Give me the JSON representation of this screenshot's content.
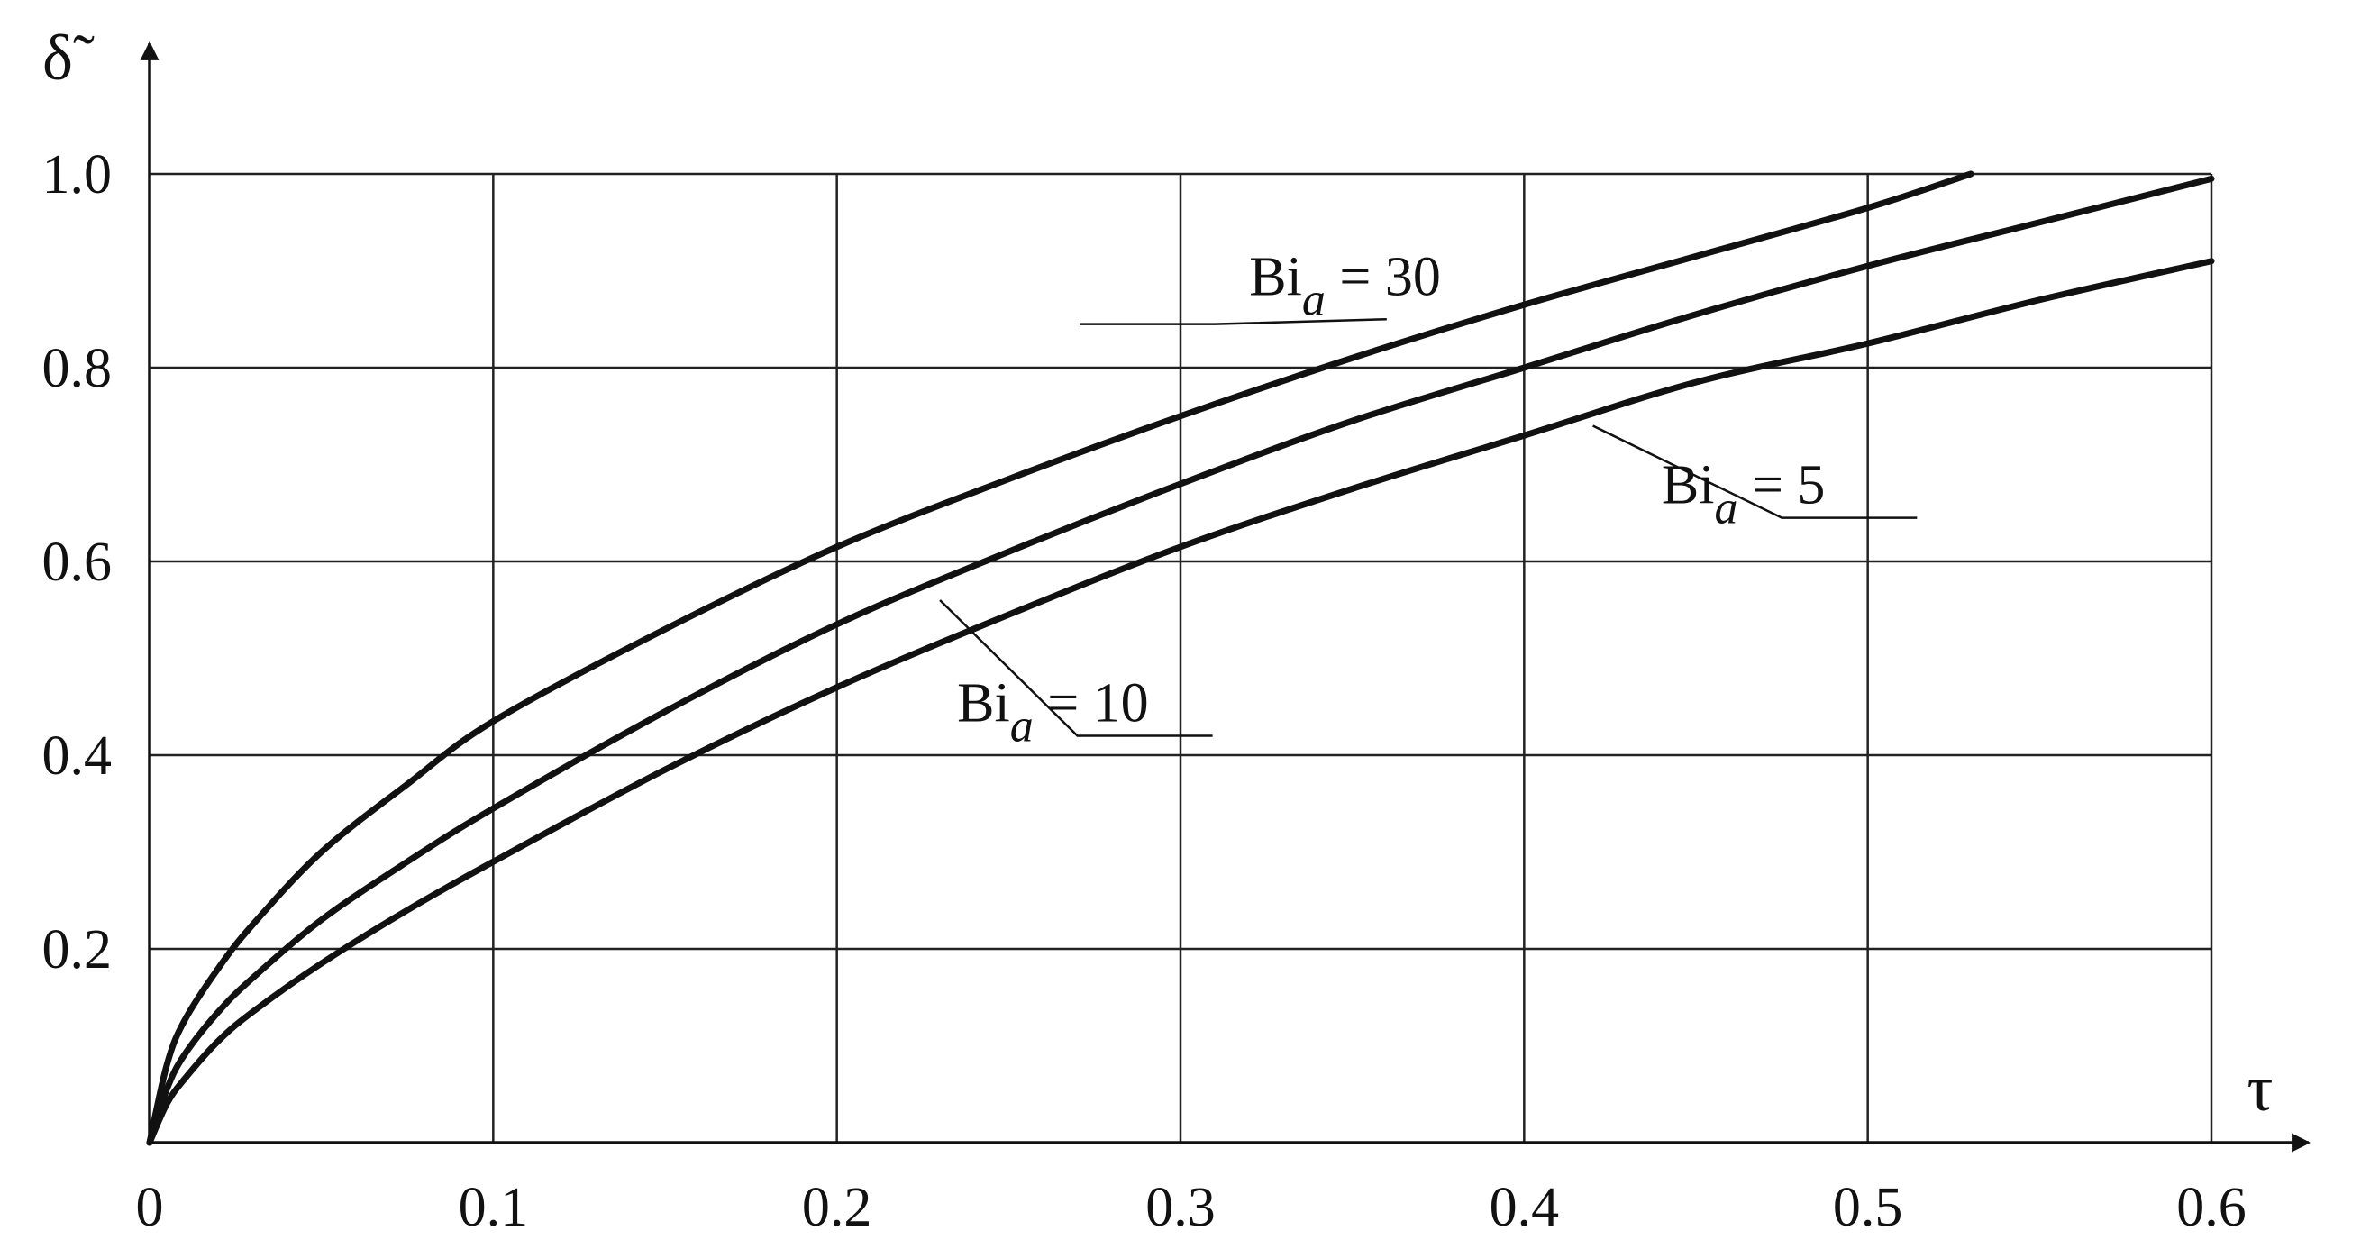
{
  "chart_data": {
    "type": "line",
    "x_symbol": "τ",
    "y_symbol": "δ̃",
    "xlim": [
      0,
      0.6
    ],
    "ylim": [
      0,
      1.0
    ],
    "x_ticks": [
      {
        "value": 0,
        "label": "0"
      },
      {
        "value": 0.1,
        "label": "0.1"
      },
      {
        "value": 0.2,
        "label": "0.2"
      },
      {
        "value": 0.3,
        "label": "0.3"
      },
      {
        "value": 0.4,
        "label": "0.4"
      },
      {
        "value": 0.5,
        "label": "0.5"
      },
      {
        "value": 0.6,
        "label": "0.6"
      }
    ],
    "y_ticks": [
      {
        "value": 0.2,
        "label": "0.2"
      },
      {
        "value": 0.4,
        "label": "0.4"
      },
      {
        "value": 0.6,
        "label": "0.6"
      },
      {
        "value": 0.8,
        "label": "0.8"
      },
      {
        "value": 1.0,
        "label": "1.0"
      }
    ],
    "grid": true,
    "series": [
      {
        "name": "Bi_a = 30",
        "label_main": "Bi",
        "label_sub": "a",
        "label_rest": " = 30",
        "x": [
          0,
          0.005,
          0.01,
          0.02,
          0.03,
          0.05,
          0.075,
          0.1,
          0.15,
          0.2,
          0.25,
          0.3,
          0.35,
          0.4,
          0.45,
          0.5,
          0.53
        ],
        "y": [
          0,
          0.08,
          0.125,
          0.18,
          0.225,
          0.3,
          0.37,
          0.435,
          0.53,
          0.615,
          0.685,
          0.75,
          0.81,
          0.865,
          0.915,
          0.965,
          1.0
        ]
      },
      {
        "name": "Bi_a = 10",
        "label_main": "Bi",
        "label_sub": "a",
        "label_rest": " = 10",
        "x": [
          0,
          0.005,
          0.01,
          0.02,
          0.03,
          0.05,
          0.075,
          0.1,
          0.15,
          0.2,
          0.25,
          0.3,
          0.35,
          0.4,
          0.45,
          0.5,
          0.55,
          0.6
        ],
        "y": [
          0,
          0.055,
          0.09,
          0.135,
          0.17,
          0.23,
          0.29,
          0.345,
          0.445,
          0.535,
          0.61,
          0.68,
          0.745,
          0.8,
          0.855,
          0.905,
          0.95,
          0.995
        ]
      },
      {
        "name": "Bi_a = 5",
        "label_main": "Bi",
        "label_sub": "a",
        "label_rest": " = 5",
        "x": [
          0,
          0.005,
          0.01,
          0.02,
          0.03,
          0.05,
          0.075,
          0.1,
          0.15,
          0.2,
          0.25,
          0.3,
          0.35,
          0.4,
          0.45,
          0.5,
          0.55,
          0.6
        ],
        "y": [
          0,
          0.04,
          0.065,
          0.105,
          0.135,
          0.185,
          0.24,
          0.29,
          0.385,
          0.47,
          0.545,
          0.615,
          0.675,
          0.73,
          0.785,
          0.825,
          0.87,
          0.91
        ]
      }
    ],
    "annotations": [
      {
        "series": "Bi_a = 30",
        "target": [
          0.36,
          0.85
        ],
        "text_at": [
          0.32,
          0.875
        ],
        "leader_to": [
          0.31,
          0.845
        ]
      },
      {
        "series": "Bi_a = 10",
        "target": [
          0.23,
          0.56
        ],
        "text_at": [
          0.235,
          0.435
        ],
        "leader_to": [
          0.27,
          0.42
        ]
      },
      {
        "series": "Bi_a = 5",
        "target": [
          0.42,
          0.74
        ],
        "text_at": [
          0.44,
          0.66
        ],
        "leader_to": [
          0.475,
          0.645
        ]
      }
    ]
  }
}
